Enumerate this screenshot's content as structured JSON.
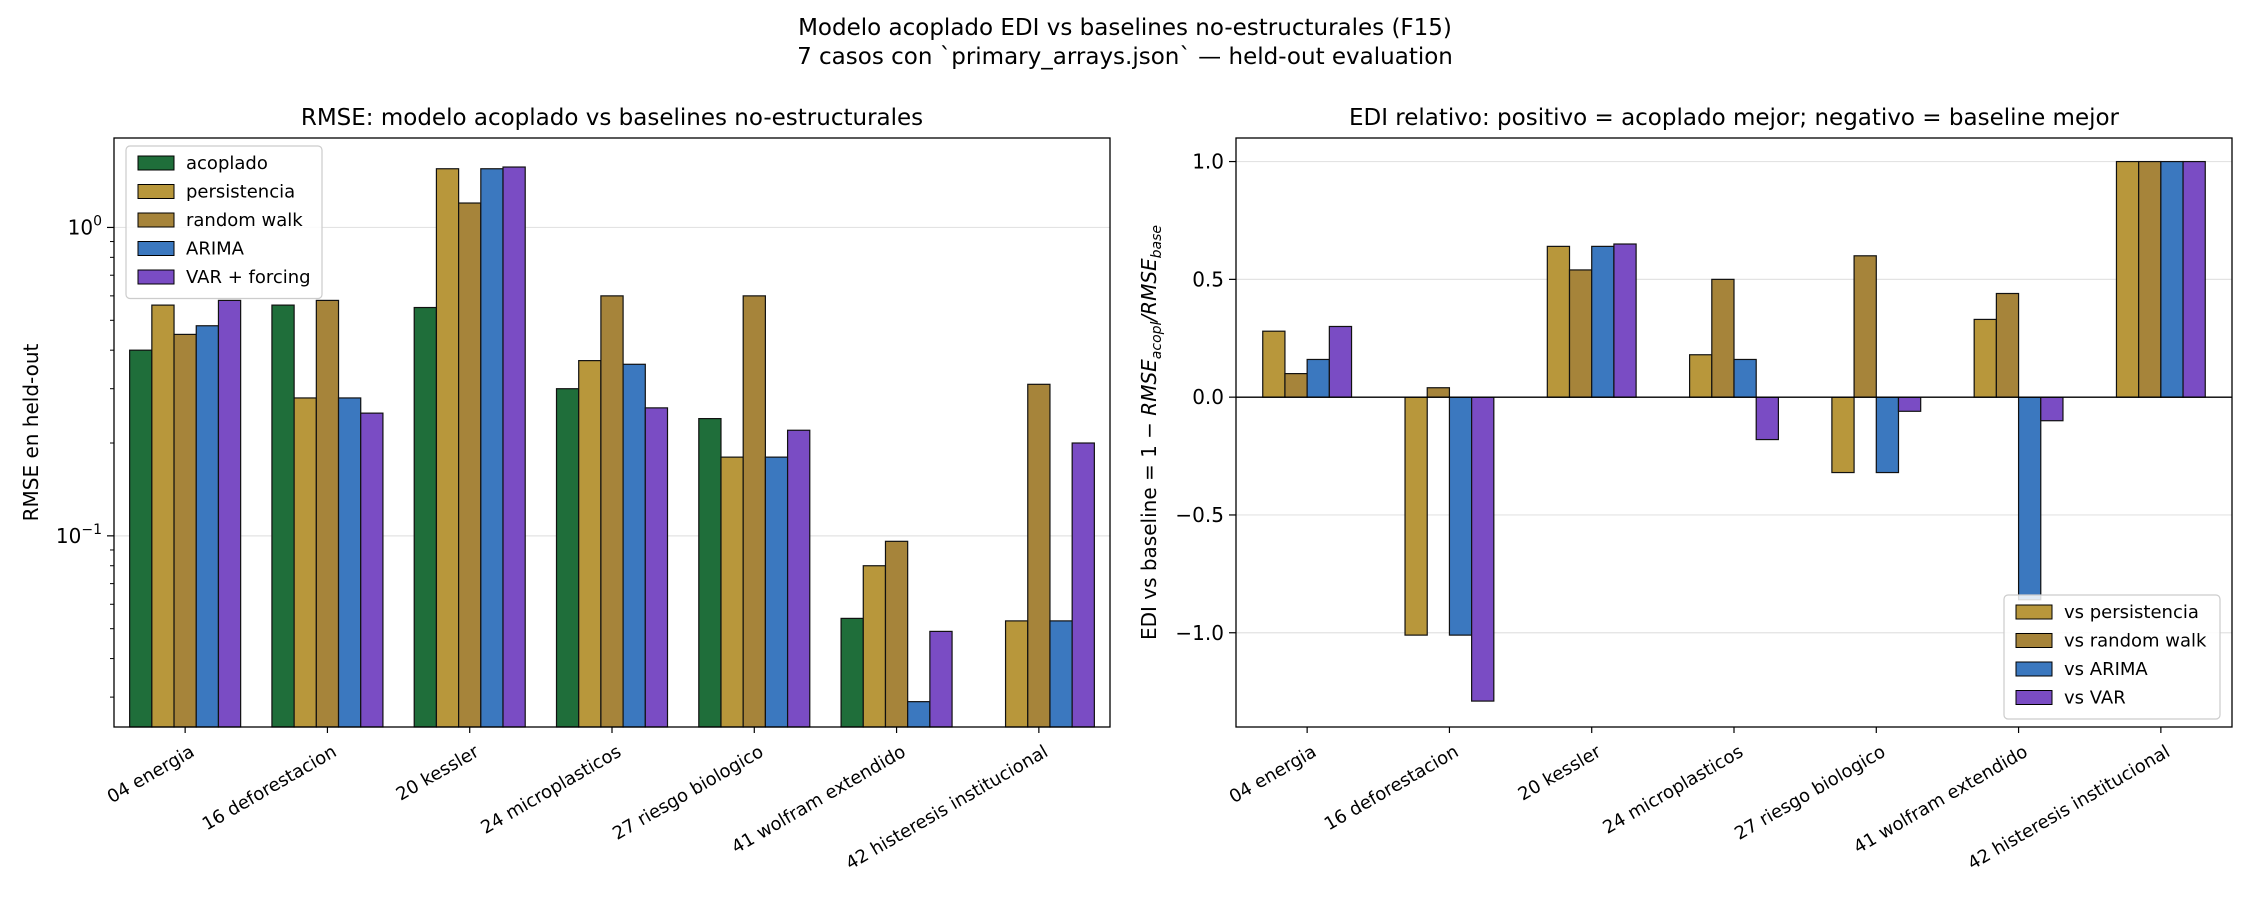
{
  "suptitle": {
    "line1": "Modelo acoplado EDI vs baselines no-estructurales (F15)",
    "line2": "7 casos con `primary_arrays.json` — held-out evaluation"
  },
  "colors": {
    "acoplado": "#1f6e3a",
    "persistencia": "#b8973b",
    "random_walk": "#a6843a",
    "arima": "#3b78bf",
    "var": "#7a4cc4"
  },
  "chart_data": [
    {
      "type": "bar",
      "title": "RMSE: modelo acoplado vs baselines no-estructurales",
      "ylabel": "RMSE en held-out",
      "yscale": "log",
      "ylim": [
        0.024,
        1.95
      ],
      "ytick_labels": [
        {
          "value": 0.1,
          "base": "10",
          "exp": "−1"
        },
        {
          "value": 1,
          "base": "10",
          "exp": "0"
        }
      ],
      "grid": "horizontal",
      "legend_position": "upper-left",
      "categories": [
        "04 energia",
        "16 deforestacion",
        "20 kessler",
        "24 microplasticos",
        "27 riesgo biologico",
        "41 wolfram extendido",
        "42 histeresis institucional"
      ],
      "series": [
        {
          "name": "acoplado",
          "color": "#1f6e3a",
          "values": [
            0.4,
            0.56,
            0.55,
            0.3,
            0.24,
            0.054,
            null
          ]
        },
        {
          "name": "persistencia",
          "color": "#b8973b",
          "values": [
            0.56,
            0.28,
            1.55,
            0.37,
            0.18,
            0.08,
            0.053
          ]
        },
        {
          "name": "random walk",
          "color": "#a6843a",
          "values": [
            0.45,
            0.58,
            1.2,
            0.6,
            0.6,
            0.096,
            0.31
          ]
        },
        {
          "name": "ARIMA",
          "color": "#3b78bf",
          "values": [
            0.48,
            0.28,
            1.55,
            0.36,
            0.18,
            0.029,
            0.053
          ]
        },
        {
          "name": "VAR + forcing",
          "color": "#7a4cc4",
          "values": [
            0.58,
            0.25,
            1.57,
            0.26,
            0.22,
            0.049,
            0.2
          ]
        }
      ]
    },
    {
      "type": "bar",
      "title": "EDI relativo: positivo = acoplado mejor; negativo = baseline mejor",
      "ylabel": {
        "prefix": "EDI vs baseline = 1 − ",
        "num_main": "RMSE",
        "num_sub": "acopl",
        "sep": "/",
        "den_main": "RMSE",
        "den_sub": "base"
      },
      "ylim": [
        -1.4,
        1.1
      ],
      "yticks": [
        -1.0,
        -0.5,
        0.0,
        0.5,
        1.0
      ],
      "ytick_labels": [
        "−1.0",
        "−0.5",
        "0.0",
        "0.5",
        "1.0"
      ],
      "grid": "horizontal",
      "legend_position": "lower-right",
      "categories": [
        "04 energia",
        "16 deforestacion",
        "20 kessler",
        "24 microplasticos",
        "27 riesgo biologico",
        "41 wolfram extendido",
        "42 histeresis institucional"
      ],
      "series": [
        {
          "name": "vs persistencia",
          "color": "#b8973b",
          "values": [
            0.28,
            -1.01,
            0.64,
            0.18,
            -0.32,
            0.33,
            1.0
          ]
        },
        {
          "name": "vs random walk",
          "color": "#a6843a",
          "values": [
            0.1,
            0.04,
            0.54,
            0.5,
            0.6,
            0.44,
            1.0
          ]
        },
        {
          "name": "vs ARIMA",
          "color": "#3b78bf",
          "values": [
            0.16,
            -1.01,
            0.64,
            0.16,
            -0.32,
            -0.86,
            1.0
          ]
        },
        {
          "name": "vs VAR",
          "color": "#7a4cc4",
          "values": [
            0.3,
            -1.29,
            0.65,
            -0.18,
            -0.06,
            -0.1,
            1.0
          ]
        }
      ]
    }
  ]
}
